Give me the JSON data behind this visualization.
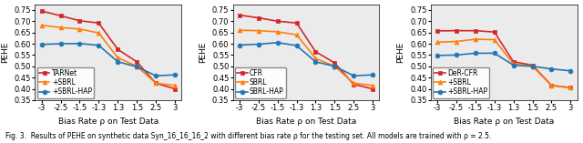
{
  "x_tick_labels": [
    "-3",
    "-2.5",
    "-1.5",
    "-1.3",
    "1.3",
    "1.5",
    "2.5",
    "3"
  ],
  "xlabel": "Bias Rate ρ on Test Data",
  "ylabel": "PEHE",
  "ylim": [
    0.35,
    0.775
  ],
  "yticks": [
    0.35,
    0.4,
    0.45,
    0.5,
    0.55,
    0.6,
    0.65,
    0.7,
    0.75
  ],
  "panel1": {
    "lines": [
      {
        "label": "TARNet",
        "color": "#d62728",
        "marker": "s",
        "values": [
          0.745,
          0.724,
          0.702,
          0.692,
          0.575,
          0.52,
          0.425,
          0.4
        ]
      },
      {
        "label": "+SBRL",
        "color": "#ff7f0e",
        "marker": "^",
        "values": [
          0.682,
          0.672,
          0.665,
          0.648,
          0.538,
          0.5,
          0.425,
          0.415
        ]
      },
      {
        "label": "+SBRL-HAP",
        "color": "#1f77b4",
        "marker": "o",
        "values": [
          0.597,
          0.6,
          0.601,
          0.593,
          0.52,
          0.498,
          0.458,
          0.462
        ]
      }
    ]
  },
  "panel2": {
    "lines": [
      {
        "label": "CFR",
        "color": "#d62728",
        "marker": "s",
        "values": [
          0.727,
          0.715,
          0.7,
          0.692,
          0.565,
          0.515,
          0.42,
          0.4
        ]
      },
      {
        "label": "SBRL",
        "color": "#ff7f0e",
        "marker": "^",
        "values": [
          0.66,
          0.658,
          0.653,
          0.64,
          0.535,
          0.5,
          0.425,
          0.415
        ]
      },
      {
        "label": "SBRL-HAP",
        "color": "#1f77b4",
        "marker": "o",
        "values": [
          0.594,
          0.598,
          0.605,
          0.592,
          0.52,
          0.5,
          0.458,
          0.462
        ]
      }
    ]
  },
  "panel3": {
    "lines": [
      {
        "label": "DeR-CFR",
        "color": "#d62728",
        "marker": "s",
        "values": [
          0.657,
          0.658,
          0.658,
          0.652,
          0.52,
          0.505,
          0.415,
          0.405
        ]
      },
      {
        "label": "+SBRL",
        "color": "#ff7f0e",
        "marker": "^",
        "values": [
          0.607,
          0.61,
          0.62,
          0.618,
          0.51,
          0.5,
          0.415,
          0.405
        ]
      },
      {
        "label": "+SBRL-HAP",
        "color": "#1f77b4",
        "marker": "o",
        "values": [
          0.548,
          0.55,
          0.558,
          0.558,
          0.505,
          0.5,
          0.488,
          0.48
        ]
      }
    ]
  },
  "fig_caption": "Fig. 3.  Results of PEHE on synthetic data Syn_16_16_16_2 with different bias rate ρ for the testing set. All models are trained with ρ = 2.5.",
  "line_width": 1.2,
  "marker_size": 3.5,
  "fontsize_axis_label": 6.5,
  "fontsize_tick": 6,
  "fontsize_legend": 5.5,
  "fontsize_caption": 5.5
}
